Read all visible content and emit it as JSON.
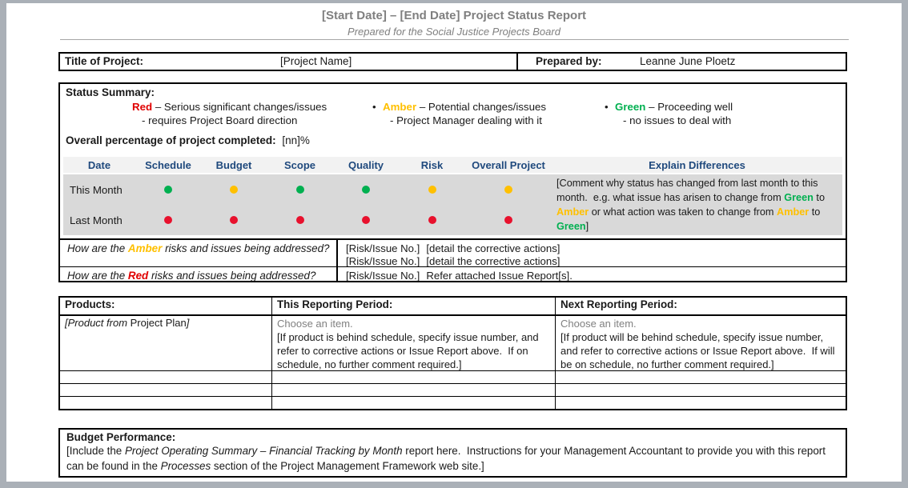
{
  "colors": {
    "red": "#e00000",
    "red_dot": "#e8112d",
    "amber": "#ffc000",
    "green": "#00b050",
    "navy_header": "#1f497d",
    "title_gray": "#7f7f7f",
    "placeholder_gray": "#808080",
    "row_bg": "#d9d9d9",
    "header_row_bg": "#f2f2f2"
  },
  "header": {
    "title": "[Start Date] – [End Date] Project Status Report",
    "subtitle": "Prepared for the Social Justice Projects Board"
  },
  "project_info": {
    "title_label": "Title of Project:",
    "title_value": "[Project Name]",
    "prepared_by_label": "Prepared by:",
    "prepared_by_value": "Leanne June Ploetz"
  },
  "status_summary": {
    "heading": "Status Summary:",
    "legend": [
      {
        "bullet": "",
        "term": "Red",
        "color": "#e00000",
        "desc": " – Serious significant changes/issues",
        "note": "- requires Project Board direction"
      },
      {
        "bullet": "•",
        "term": "Amber",
        "color": "#ffc000",
        "desc": " – Potential changes/issues",
        "note": "- Project Manager dealing with it"
      },
      {
        "bullet": "•",
        "term": "Green",
        "color": "#00b050",
        "desc": " – Proceeding well",
        "note": "- no issues to deal with"
      }
    ],
    "overall_label": "Overall percentage of project completed:",
    "overall_value": "[nn]%",
    "table": {
      "headers": [
        "Date",
        "Schedule",
        "Budget",
        "Scope",
        "Quality",
        "Risk",
        "Overall Project",
        "Explain Differences"
      ],
      "rows": [
        {
          "label": "This Month",
          "dots": [
            {
              "status": "green",
              "color": "#00b050"
            },
            {
              "status": "amber",
              "color": "#ffc000"
            },
            {
              "status": "green",
              "color": "#00b050"
            },
            {
              "status": "green",
              "color": "#00b050"
            },
            {
              "status": "amber",
              "color": "#ffc000"
            },
            {
              "status": "amber",
              "color": "#ffc000"
            }
          ]
        },
        {
          "label": "Last Month",
          "dots": [
            {
              "status": "red",
              "color": "#e8112d"
            },
            {
              "status": "red",
              "color": "#e8112d"
            },
            {
              "status": "red",
              "color": "#e8112d"
            },
            {
              "status": "red",
              "color": "#e8112d"
            },
            {
              "status": "red",
              "color": "#e8112d"
            },
            {
              "status": "red",
              "color": "#e8112d"
            }
          ]
        }
      ],
      "explain_segments": [
        {
          "text": "[Comment why status has changed from last month to this month.  e.g. what issue has arisen to change from "
        },
        {
          "text": "Green",
          "color": "green"
        },
        {
          "text": " to "
        },
        {
          "text": "Amber",
          "color": "amber"
        },
        {
          "text": " or what action was taken to change from "
        },
        {
          "text": "Amber",
          "color": "amber"
        },
        {
          "text": " to "
        },
        {
          "text": "Green",
          "color": "green"
        },
        {
          "text": "]"
        }
      ]
    },
    "amber_row": {
      "question_segments": [
        {
          "text": "How are the "
        },
        {
          "text": "Amber",
          "color": "amber"
        },
        {
          "text": " risks and issues being addressed?"
        }
      ],
      "lines": [
        {
          "ref": "[Risk/Issue No.]",
          "action": "[detail the corrective actions]"
        },
        {
          "ref": "[Risk/Issue No.]",
          "action": "[detail the corrective actions]"
        }
      ]
    },
    "red_row": {
      "question_segments": [
        {
          "text": "How are the "
        },
        {
          "text": "Red",
          "color": "red"
        },
        {
          "text": " risks and issues being addressed?"
        }
      ],
      "lines": [
        {
          "ref": "[Risk/Issue No.]",
          "action": "Refer attached Issue Report[s]."
        }
      ]
    }
  },
  "products": {
    "headers": [
      "Products:",
      "This Reporting Period:",
      "Next Reporting Period:"
    ],
    "first_row": {
      "product_segments": [
        {
          "text": "[Product from ",
          "italic": true
        },
        {
          "text": "Project Plan",
          "italic": false
        },
        {
          "text": "]",
          "italic": true
        }
      ],
      "this_period": {
        "dropdown_placeholder": "Choose an item.",
        "note": "[If product is behind schedule, specify issue number, and refer to corrective actions or Issue Report above.  If on schedule, no further comment required.]"
      },
      "next_period": {
        "dropdown_placeholder": "Choose an item.",
        "note": "[If product will be behind schedule, specify issue number, and refer to corrective actions or Issue Report above.  If will be on schedule, no further comment required.]"
      }
    },
    "empty_row_count": 3
  },
  "budget": {
    "heading": "Budget Performance:",
    "body_segments": [
      {
        "text": "[Include the ",
        "italic": false
      },
      {
        "text": "Project Operating Summary – Financial Tracking by Month",
        "italic": true
      },
      {
        "text": " report here.  Instructions for your Management Accountant to provide you with this report can be found in the ",
        "italic": false
      },
      {
        "text": "Processes",
        "italic": true
      },
      {
        "text": " section of the Project Management Framework web site.]",
        "italic": false
      }
    ]
  }
}
